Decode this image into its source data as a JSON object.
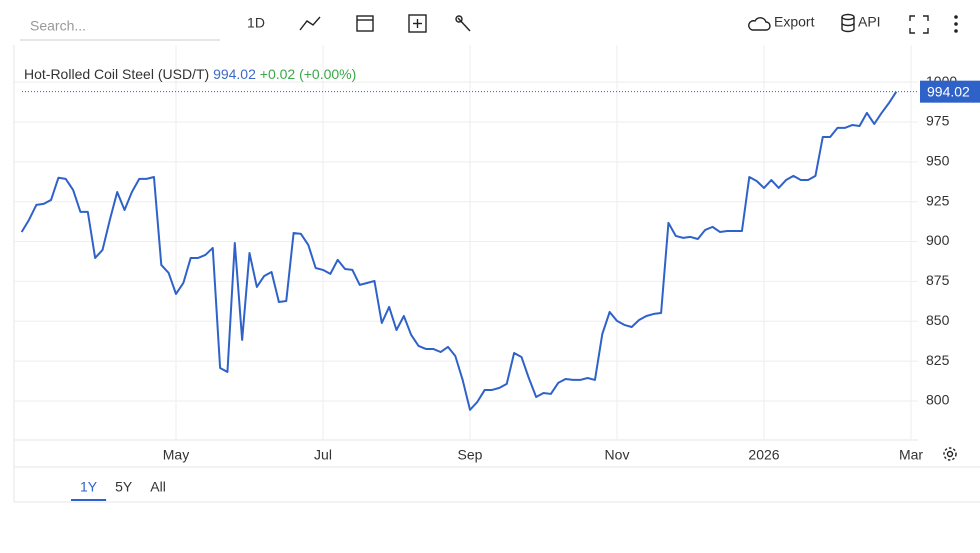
{
  "toolbar": {
    "search_placeholder": "Search...",
    "interval": "1D",
    "export": "Export",
    "api": "API"
  },
  "ranges": [
    "1Y",
    "5Y",
    "All"
  ],
  "header": {
    "name": "Hot-Rolled Coil Steel (USD/T)",
    "price": "994.02",
    "change": "+0.02 (+0.00%)"
  },
  "chart_data": {
    "type": "line",
    "color": "#2f62c9",
    "grid": true,
    "categories": [
      null,
      null,
      null,
      null,
      null,
      null,
      null,
      null,
      null,
      null,
      null,
      null,
      null,
      null,
      null,
      null,
      null,
      null,
      null,
      null,
      null,
      "May",
      null,
      null,
      null,
      null,
      null,
      null,
      null,
      null,
      null,
      null,
      null,
      null,
      null,
      null,
      null,
      null,
      null,
      null,
      null,
      "Jul",
      null,
      null,
      null,
      null,
      null,
      null,
      null,
      null,
      null,
      null,
      null,
      null,
      null,
      null,
      null,
      null,
      null,
      null,
      null,
      "Sep",
      null,
      null,
      null,
      null,
      null,
      null,
      null,
      null,
      null,
      null,
      null,
      null,
      null,
      null,
      null,
      null,
      null,
      null,
      null,
      "Nov",
      null,
      null,
      null,
      null,
      null,
      null,
      null,
      null,
      null,
      null,
      null,
      null,
      null,
      null,
      null,
      null,
      null,
      null,
      null,
      "2026",
      null,
      null,
      null,
      null,
      null,
      null,
      null,
      null,
      null,
      null,
      null,
      null,
      null,
      null,
      null,
      null,
      null,
      null,
      null,
      "Mar"
    ],
    "values": [
      906.0,
      913.6,
      923,
      923.6,
      926.1,
      940,
      939.3,
      932.4,
      918.6,
      918.6,
      889.7,
      894.7,
      913.6,
      931.1,
      919.8,
      931.1,
      939.3,
      939.3,
      940.5,
      885.3,
      880.3,
      867.1,
      874,
      889.7,
      889.7,
      891.6,
      896,
      820.7,
      818.2,
      899.1,
      838.3,
      892.8,
      871.5,
      878.4,
      880.9,
      862.1,
      862.7,
      905.4,
      904.8,
      897.9,
      883.4,
      882.2,
      879.7,
      888.5,
      882.8,
      882.2,
      872.8,
      874,
      875.3,
      848.9,
      859,
      844.5,
      853.3,
      841.4,
      834.5,
      832.6,
      832.6,
      830.7,
      833.9,
      828.2,
      813.2,
      794.4,
      799.4,
      806.9,
      806.9,
      808.2,
      810.7,
      830.1,
      827.6,
      814.4,
      802.5,
      805,
      804.4,
      811.3,
      813.8,
      813.2,
      813.2,
      814.4,
      813.2,
      842,
      855.8,
      850.2,
      847.7,
      846.4,
      850.8,
      853.3,
      854.6,
      855.2,
      911.7,
      903.5,
      902.3,
      902.9,
      901.6,
      907.3,
      909.2,
      906,
      906.6,
      906.6,
      906.6,
      940.5,
      938,
      933.6,
      938.6,
      933.6,
      938.6,
      941.2,
      938.6,
      938.6,
      941.2,
      965.6,
      965.6,
      971.3,
      971.3,
      973.1,
      972.5,
      980.7,
      973.8,
      980.7,
      986.9,
      994.02,
      null,
      null
    ],
    "ylim": [
      775.5,
      1023.3
    ],
    "yticks": [
      800,
      825,
      850,
      875,
      900,
      925,
      950,
      975,
      1000
    ]
  }
}
